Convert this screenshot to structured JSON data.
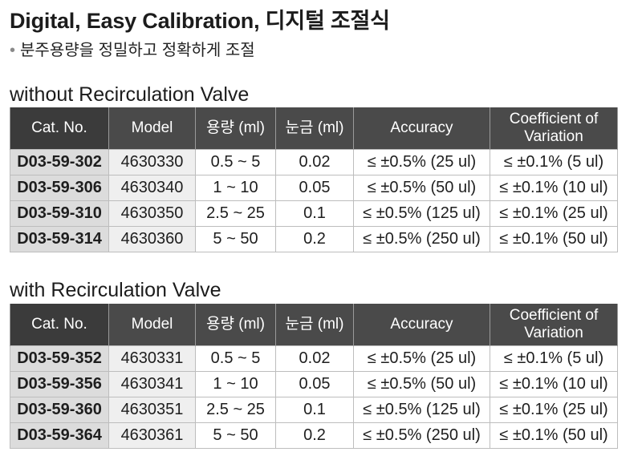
{
  "header": {
    "title": "Digital, Easy Calibration, 디지털 조절식",
    "subtitle": "분주용량을 정밀하고 정확하게 조절"
  },
  "columns": [
    "Cat. No.",
    "Model",
    "용량 (ml)",
    "눈금 (ml)",
    "Accuracy",
    "Coefficient of Variation"
  ],
  "sections": [
    {
      "title": "without Recirculation Valve",
      "rows": [
        {
          "cat": "D03-59-302",
          "model": "4630330",
          "volume": "0.5 ~ 5",
          "scale": "0.02",
          "accuracy": "≤ ±0.5% (25 ul)",
          "cv": "≤ ±0.1% (5 ul)"
        },
        {
          "cat": "D03-59-306",
          "model": "4630340",
          "volume": "1 ~ 10",
          "scale": "0.05",
          "accuracy": "≤ ±0.5% (50 ul)",
          "cv": "≤ ±0.1% (10 ul)"
        },
        {
          "cat": "D03-59-310",
          "model": "4630350",
          "volume": "2.5 ~ 25",
          "scale": "0.1",
          "accuracy": "≤ ±0.5% (125 ul)",
          "cv": "≤ ±0.1% (25 ul)"
        },
        {
          "cat": "D03-59-314",
          "model": "4630360",
          "volume": "5 ~ 50",
          "scale": "0.2",
          "accuracy": "≤ ±0.5% (250 ul)",
          "cv": "≤ ±0.1% (50 ul)"
        }
      ]
    },
    {
      "title": "with Recirculation Valve",
      "rows": [
        {
          "cat": "D03-59-352",
          "model": "4630331",
          "volume": "0.5 ~ 5",
          "scale": "0.02",
          "accuracy": "≤ ±0.5% (25 ul)",
          "cv": "≤ ±0.1% (5 ul)"
        },
        {
          "cat": "D03-59-356",
          "model": "4630341",
          "volume": "1 ~ 10",
          "scale": "0.05",
          "accuracy": "≤ ±0.5% (50 ul)",
          "cv": "≤ ±0.1% (10 ul)"
        },
        {
          "cat": "D03-59-360",
          "model": "4630351",
          "volume": "2.5 ~ 25",
          "scale": "0.1",
          "accuracy": "≤ ±0.5% (125 ul)",
          "cv": "≤ ±0.1% (25 ul)"
        },
        {
          "cat": "D03-59-364",
          "model": "4630361",
          "volume": "5 ~ 50",
          "scale": "0.2",
          "accuracy": "≤ ±0.5% (250 ul)",
          "cv": "≤ ±0.1% (50 ul)"
        }
      ]
    }
  ]
}
